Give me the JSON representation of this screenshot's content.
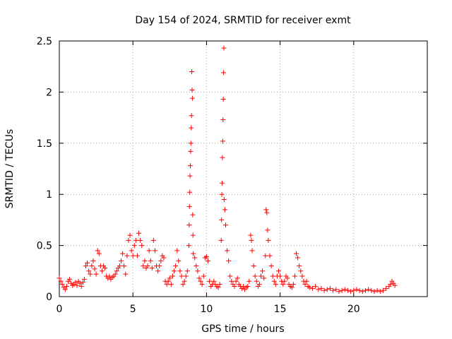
{
  "chart_data": {
    "type": "scatter",
    "title": "Day 154 of 2024, SRMTID for receiver exmt",
    "xlabel": "GPS time / hours",
    "ylabel": "SRMTID / TECUs",
    "xlim": [
      0,
      25
    ],
    "ylim": [
      0,
      2.5
    ],
    "xticks": [
      0,
      5,
      10,
      15,
      20
    ],
    "xtick_labels": [
      "0",
      "5",
      "10",
      "15",
      "20"
    ],
    "yticks": [
      0,
      0.5,
      1,
      1.5,
      2,
      2.5
    ],
    "ytick_labels": [
      "0",
      "0.5",
      "1",
      "1.5",
      "2",
      "2.5"
    ],
    "grid": true,
    "marker": "+",
    "color": "#ff0000",
    "series": [
      {
        "name": "SRMTID",
        "points": [
          [
            0.0,
            0.18
          ],
          [
            0.1,
            0.15
          ],
          [
            0.2,
            0.12
          ],
          [
            0.3,
            0.09
          ],
          [
            0.4,
            0.07
          ],
          [
            0.5,
            0.1
          ],
          [
            0.6,
            0.15
          ],
          [
            0.7,
            0.17
          ],
          [
            0.8,
            0.13
          ],
          [
            0.9,
            0.11
          ],
          [
            1.0,
            0.12
          ],
          [
            1.1,
            0.14
          ],
          [
            1.2,
            0.11
          ],
          [
            1.3,
            0.15
          ],
          [
            1.4,
            0.13
          ],
          [
            1.5,
            0.1
          ],
          [
            1.6,
            0.14
          ],
          [
            1.7,
            0.17
          ],
          [
            1.8,
            0.3
          ],
          [
            1.9,
            0.33
          ],
          [
            2.0,
            0.25
          ],
          [
            2.1,
            0.22
          ],
          [
            2.2,
            0.3
          ],
          [
            2.3,
            0.35
          ],
          [
            2.4,
            0.27
          ],
          [
            2.5,
            0.22
          ],
          [
            2.6,
            0.45
          ],
          [
            2.7,
            0.42
          ],
          [
            2.8,
            0.3
          ],
          [
            2.9,
            0.25
          ],
          [
            3.0,
            0.3
          ],
          [
            3.1,
            0.28
          ],
          [
            3.2,
            0.2
          ],
          [
            3.3,
            0.18
          ],
          [
            3.4,
            0.2
          ],
          [
            3.5,
            0.17
          ],
          [
            3.6,
            0.19
          ],
          [
            3.7,
            0.2
          ],
          [
            3.8,
            0.22
          ],
          [
            3.9,
            0.25
          ],
          [
            4.0,
            0.28
          ],
          [
            4.1,
            0.3
          ],
          [
            4.2,
            0.35
          ],
          [
            4.3,
            0.42
          ],
          [
            4.4,
            0.3
          ],
          [
            4.5,
            0.22
          ],
          [
            4.6,
            0.4
          ],
          [
            4.7,
            0.55
          ],
          [
            4.8,
            0.6
          ],
          [
            4.9,
            0.45
          ],
          [
            5.0,
            0.4
          ],
          [
            5.1,
            0.5
          ],
          [
            5.2,
            0.55
          ],
          [
            5.3,
            0.4
          ],
          [
            5.4,
            0.62
          ],
          [
            5.5,
            0.55
          ],
          [
            5.6,
            0.5
          ],
          [
            5.7,
            0.3
          ],
          [
            5.8,
            0.35
          ],
          [
            5.9,
            0.28
          ],
          [
            6.0,
            0.3
          ],
          [
            6.1,
            0.45
          ],
          [
            6.2,
            0.35
          ],
          [
            6.3,
            0.28
          ],
          [
            6.4,
            0.55
          ],
          [
            6.5,
            0.45
          ],
          [
            6.6,
            0.3
          ],
          [
            6.7,
            0.25
          ],
          [
            6.8,
            0.3
          ],
          [
            6.9,
            0.35
          ],
          [
            7.0,
            0.4
          ],
          [
            7.1,
            0.38
          ],
          [
            7.2,
            0.15
          ],
          [
            7.3,
            0.12
          ],
          [
            7.4,
            0.15
          ],
          [
            7.5,
            0.18
          ],
          [
            7.6,
            0.12
          ],
          [
            7.7,
            0.2
          ],
          [
            7.8,
            0.25
          ],
          [
            7.9,
            0.3
          ],
          [
            8.0,
            0.45
          ],
          [
            8.1,
            0.35
          ],
          [
            8.2,
            0.25
          ],
          [
            8.3,
            0.2
          ],
          [
            8.4,
            0.12
          ],
          [
            8.5,
            0.15
          ],
          [
            8.6,
            0.2
          ],
          [
            8.7,
            0.25
          ],
          [
            8.8,
            0.5
          ],
          [
            8.82,
            0.7
          ],
          [
            8.84,
            0.88
          ],
          [
            8.86,
            1.02
          ],
          [
            8.88,
            1.18
          ],
          [
            8.9,
            1.28
          ],
          [
            8.92,
            1.42
          ],
          [
            8.94,
            1.5
          ],
          [
            8.96,
            1.65
          ],
          [
            8.98,
            1.77
          ],
          [
            9.0,
            2.2
          ],
          [
            9.02,
            2.02
          ],
          [
            9.04,
            1.94
          ],
          [
            9.06,
            0.8
          ],
          [
            9.08,
            0.6
          ],
          [
            9.1,
            0.42
          ],
          [
            9.2,
            0.38
          ],
          [
            9.3,
            0.3
          ],
          [
            9.4,
            0.25
          ],
          [
            9.5,
            0.18
          ],
          [
            9.6,
            0.15
          ],
          [
            9.7,
            0.12
          ],
          [
            9.8,
            0.2
          ],
          [
            9.9,
            0.38
          ],
          [
            10.0,
            0.39
          ],
          [
            10.1,
            0.35
          ],
          [
            10.2,
            0.15
          ],
          [
            10.3,
            0.1
          ],
          [
            10.4,
            0.12
          ],
          [
            10.5,
            0.15
          ],
          [
            10.6,
            0.12
          ],
          [
            10.7,
            0.1
          ],
          [
            10.8,
            0.09
          ],
          [
            10.9,
            0.12
          ],
          [
            11.0,
            0.55
          ],
          [
            11.02,
            0.75
          ],
          [
            11.04,
            1.0
          ],
          [
            11.06,
            1.11
          ],
          [
            11.08,
            1.36
          ],
          [
            11.1,
            1.52
          ],
          [
            11.12,
            1.73
          ],
          [
            11.14,
            1.93
          ],
          [
            11.16,
            2.19
          ],
          [
            11.18,
            2.43
          ],
          [
            11.2,
            0.95
          ],
          [
            11.25,
            0.85
          ],
          [
            11.3,
            0.7
          ],
          [
            11.4,
            0.45
          ],
          [
            11.5,
            0.35
          ],
          [
            11.6,
            0.2
          ],
          [
            11.7,
            0.15
          ],
          [
            11.8,
            0.12
          ],
          [
            11.9,
            0.1
          ],
          [
            12.0,
            0.15
          ],
          [
            12.1,
            0.18
          ],
          [
            12.2,
            0.12
          ],
          [
            12.3,
            0.1
          ],
          [
            12.4,
            0.08
          ],
          [
            12.5,
            0.1
          ],
          [
            12.6,
            0.07
          ],
          [
            12.7,
            0.09
          ],
          [
            12.8,
            0.1
          ],
          [
            12.9,
            0.15
          ],
          [
            13.0,
            0.6
          ],
          [
            13.05,
            0.55
          ],
          [
            13.1,
            0.45
          ],
          [
            13.2,
            0.3
          ],
          [
            13.3,
            0.2
          ],
          [
            13.4,
            0.15
          ],
          [
            13.5,
            0.1
          ],
          [
            13.6,
            0.12
          ],
          [
            13.7,
            0.2
          ],
          [
            13.8,
            0.25
          ],
          [
            13.9,
            0.18
          ],
          [
            14.0,
            0.4
          ],
          [
            14.05,
            0.85
          ],
          [
            14.1,
            0.82
          ],
          [
            14.15,
            0.65
          ],
          [
            14.2,
            0.55
          ],
          [
            14.3,
            0.4
          ],
          [
            14.4,
            0.3
          ],
          [
            14.5,
            0.2
          ],
          [
            14.6,
            0.15
          ],
          [
            14.7,
            0.12
          ],
          [
            14.8,
            0.2
          ],
          [
            14.9,
            0.25
          ],
          [
            15.0,
            0.2
          ],
          [
            15.1,
            0.15
          ],
          [
            15.2,
            0.12
          ],
          [
            15.3,
            0.15
          ],
          [
            15.4,
            0.2
          ],
          [
            15.5,
            0.18
          ],
          [
            15.6,
            0.12
          ],
          [
            15.7,
            0.1
          ],
          [
            15.8,
            0.09
          ],
          [
            15.9,
            0.12
          ],
          [
            16.0,
            0.2
          ],
          [
            16.1,
            0.42
          ],
          [
            16.2,
            0.38
          ],
          [
            16.3,
            0.3
          ],
          [
            16.4,
            0.25
          ],
          [
            16.5,
            0.2
          ],
          [
            16.6,
            0.15
          ],
          [
            16.7,
            0.12
          ],
          [
            16.8,
            0.15
          ],
          [
            16.9,
            0.1
          ],
          [
            17.0,
            0.09
          ],
          [
            17.2,
            0.08
          ],
          [
            17.4,
            0.1
          ],
          [
            17.6,
            0.07
          ],
          [
            17.8,
            0.08
          ],
          [
            18.0,
            0.06
          ],
          [
            18.2,
            0.07
          ],
          [
            18.4,
            0.08
          ],
          [
            18.6,
            0.06
          ],
          [
            18.8,
            0.07
          ],
          [
            19.0,
            0.05
          ],
          [
            19.2,
            0.06
          ],
          [
            19.4,
            0.07
          ],
          [
            19.6,
            0.06
          ],
          [
            19.8,
            0.05
          ],
          [
            20.0,
            0.06
          ],
          [
            20.2,
            0.07
          ],
          [
            20.4,
            0.06
          ],
          [
            20.6,
            0.05
          ],
          [
            20.8,
            0.06
          ],
          [
            21.0,
            0.07
          ],
          [
            21.2,
            0.06
          ],
          [
            21.4,
            0.05
          ],
          [
            21.6,
            0.06
          ],
          [
            21.8,
            0.05
          ],
          [
            22.0,
            0.06
          ],
          [
            22.2,
            0.08
          ],
          [
            22.4,
            0.1
          ],
          [
            22.5,
            0.12
          ],
          [
            22.6,
            0.15
          ],
          [
            22.7,
            0.13
          ],
          [
            22.8,
            0.11
          ]
        ]
      }
    ]
  }
}
